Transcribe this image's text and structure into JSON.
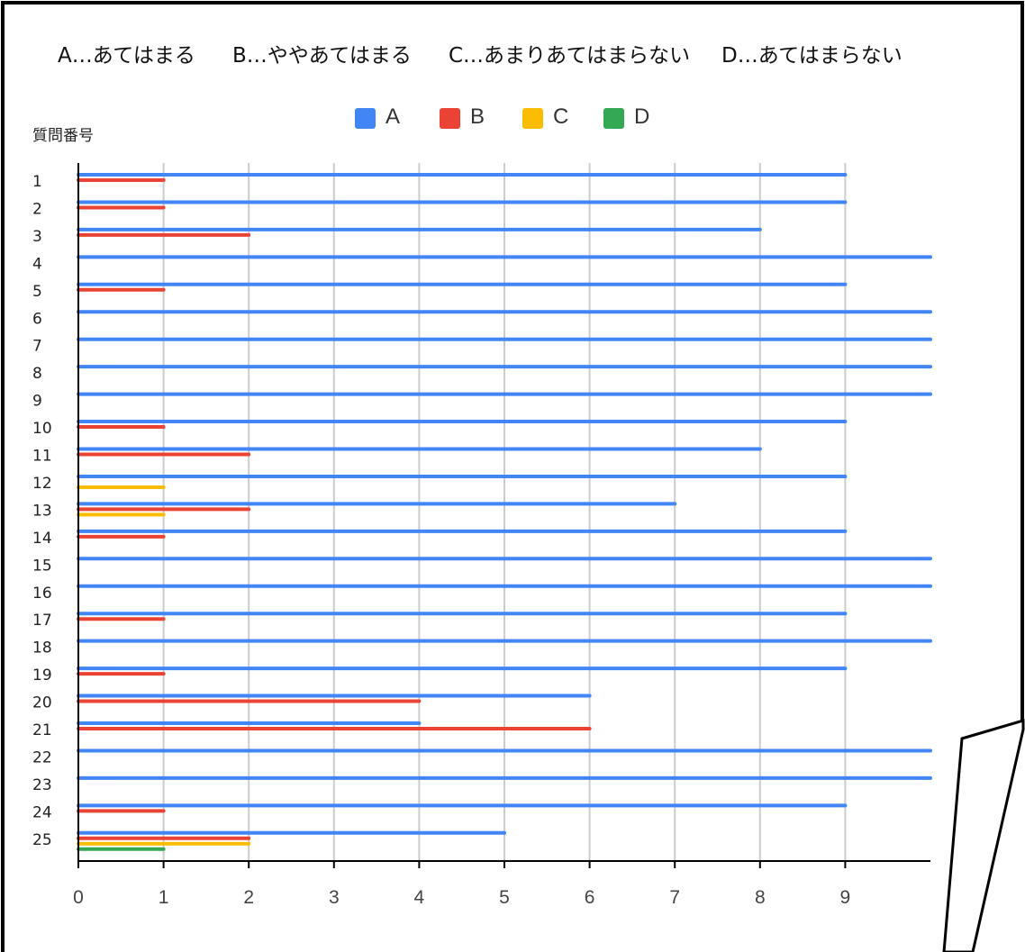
{
  "definitions": [
    {
      "key": "A",
      "text": "A…あてはまる"
    },
    {
      "key": "B",
      "text": "B…ややあてはまる"
    },
    {
      "key": "C",
      "text": "C…あまりあてはまらない"
    },
    {
      "key": "D",
      "text": "D…あてはまらない"
    }
  ],
  "chart_data": {
    "type": "bar",
    "orientation": "horizontal",
    "y_axis_title": "質問番号",
    "categories": [
      "1",
      "2",
      "3",
      "4",
      "5",
      "6",
      "7",
      "8",
      "9",
      "10",
      "11",
      "12",
      "13",
      "14",
      "15",
      "16",
      "17",
      "18",
      "19",
      "20",
      "21",
      "22",
      "23",
      "24",
      "25"
    ],
    "x_ticks": [
      "0",
      "1",
      "2",
      "3",
      "4",
      "5",
      "6",
      "7",
      "8",
      "9"
    ],
    "xlim": [
      0,
      10
    ],
    "grid": true,
    "legend_position": "top",
    "series": [
      {
        "name": "A",
        "color": "#4285F4",
        "values": [
          9,
          9,
          8,
          10,
          9,
          10,
          10,
          10,
          10,
          9,
          8,
          9,
          7,
          9,
          10,
          10,
          9,
          10,
          9,
          6,
          4,
          10,
          10,
          9,
          5
        ]
      },
      {
        "name": "B",
        "color": "#EA4335",
        "values": [
          1,
          1,
          2,
          0,
          1,
          0,
          0,
          0,
          0,
          1,
          2,
          0,
          2,
          1,
          0,
          0,
          1,
          0,
          1,
          4,
          6,
          0,
          0,
          1,
          2
        ]
      },
      {
        "name": "C",
        "color": "#FBBC04",
        "values": [
          0,
          0,
          0,
          0,
          0,
          0,
          0,
          0,
          0,
          0,
          0,
          1,
          1,
          0,
          0,
          0,
          0,
          0,
          0,
          0,
          0,
          0,
          0,
          0,
          2
        ]
      },
      {
        "name": "D",
        "color": "#34A853",
        "values": [
          0,
          0,
          0,
          0,
          0,
          0,
          0,
          0,
          0,
          0,
          0,
          0,
          0,
          0,
          0,
          0,
          0,
          0,
          0,
          0,
          0,
          0,
          0,
          0,
          1
        ]
      }
    ]
  }
}
